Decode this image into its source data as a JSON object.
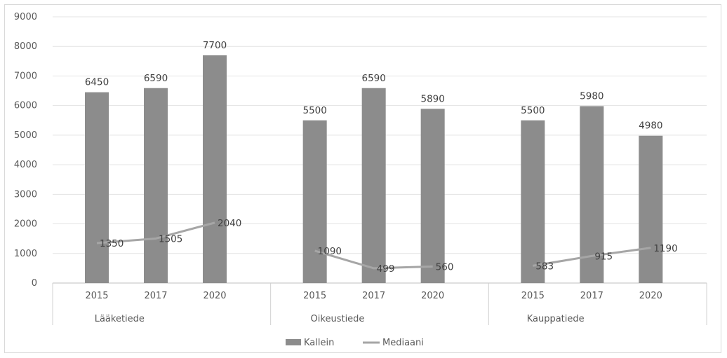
{
  "chart_data": {
    "type": "bar",
    "title": "",
    "xlabel": "",
    "ylabel": "",
    "ylim": [
      0,
      9000
    ],
    "y_ticks": [
      "0",
      "1000",
      "2000",
      "3000",
      "4000",
      "5000",
      "6000",
      "7000",
      "8000",
      "9000"
    ],
    "grid": true,
    "legend_position": "bottom",
    "groups": [
      {
        "label": "Lääketiede",
        "categories": [
          "2015",
          "2017",
          "2020"
        ]
      },
      {
        "label": "Oikeustiede",
        "categories": [
          "2015",
          "2017",
          "2020"
        ]
      },
      {
        "label": "Kauppatiede",
        "categories": [
          "2015",
          "2017",
          "2020"
        ]
      }
    ],
    "series": [
      {
        "name": "Kallein",
        "kind": "bar",
        "color": "#8c8c8c",
        "values": [
          6450,
          6590,
          7700,
          5500,
          6590,
          5890,
          5500,
          5980,
          4980
        ],
        "labels": [
          "6450",
          "6590",
          "7700",
          "5500",
          "6590",
          "5890",
          "5500",
          "5980",
          "4980"
        ]
      },
      {
        "name": "Mediaani",
        "kind": "line",
        "color": "#a6a6a6",
        "values": [
          1350,
          1505,
          2040,
          1090,
          499,
          560,
          583,
          915,
          1190
        ],
        "labels": [
          "1350",
          "1505",
          "2040",
          "1090",
          "499",
          "560",
          "583",
          "915",
          "1190"
        ]
      }
    ]
  }
}
